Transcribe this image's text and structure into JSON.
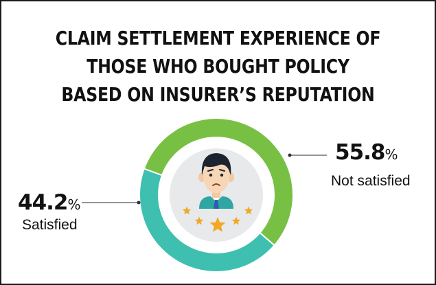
{
  "title_lines": [
    "CLAIM SETTLEMENT EXPERIENCE OF",
    "THOSE WHO BOUGHT POLICY",
    "BASED ON INSURER’S REPUTATION"
  ],
  "chart_data": {
    "type": "pie",
    "variant": "donut",
    "unit": "%",
    "slices": [
      {
        "name": "Satisfied",
        "value": 44.2,
        "value_label": "44.2",
        "color": "#3fbfaf"
      },
      {
        "name": "Not satisfied",
        "value": 55.8,
        "value_label": "55.8",
        "color": "#78c043"
      }
    ]
  },
  "icons": {
    "center": "person-with-star-rating-icon"
  },
  "colors": {
    "satisfied": "#3fbfaf",
    "not_satisfied": "#78c043",
    "inner_circle": "#e8e9ea",
    "star": "#f2a725",
    "text": "#111111"
  }
}
